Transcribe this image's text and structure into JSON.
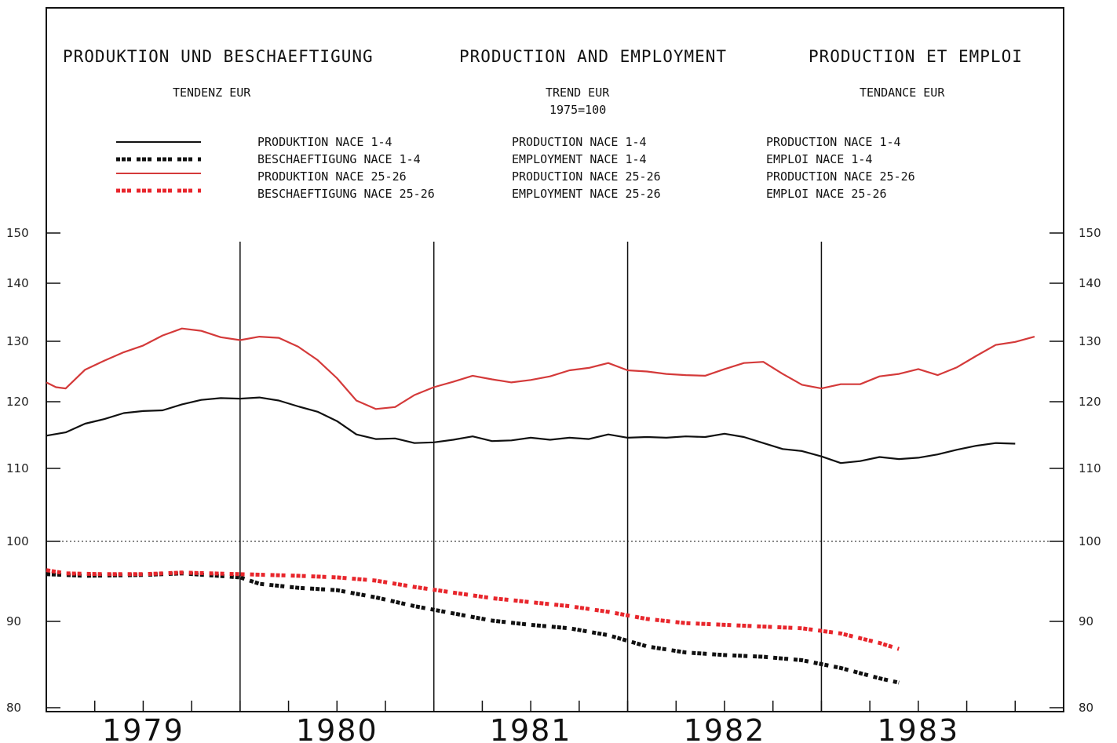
{
  "header": {
    "title_de": "PRODUKTION UND BESCHAEFTIGUNG",
    "title_en": "PRODUCTION AND EMPLOYMENT",
    "title_fr": "PRODUCTION ET EMPLOI",
    "subtitle_de": "TENDENZ EUR",
    "subtitle_en": "TREND EUR",
    "subtitle_en_base": "1975=100",
    "subtitle_fr": "TENDANCE EUR"
  },
  "legend": [
    {
      "de": "PRODUKTION NACE 1-4",
      "en": "PRODUCTION NACE 1-4",
      "fr": "PRODUCTION NACE 1-4",
      "color": "#111111",
      "style": "solid"
    },
    {
      "de": "BESCHAEFTIGUNG NACE 1-4",
      "en": "EMPLOYMENT NACE 1-4",
      "fr": "EMPLOI NACE 1-4",
      "color": "#111111",
      "style": "dotted"
    },
    {
      "de": "PRODUKTION NACE 25-26",
      "en": "PRODUCTION NACE 25-26",
      "fr": "PRODUCTION NACE 25-26",
      "color": "#d43a3a",
      "style": "solid"
    },
    {
      "de": "BESCHAEFTIGUNG NACE 25-26",
      "en": "EMPLOYMENT NACE 25-26",
      "fr": "EMPLOI NACE 25-26",
      "color": "#e8262c",
      "style": "dotted"
    }
  ],
  "chart_data": {
    "type": "line",
    "ylim": [
      80,
      150
    ],
    "y_ticks": [
      "80",
      "90",
      "100",
      "110",
      "120",
      "130",
      "140",
      "150"
    ],
    "x_range": [
      1978.5,
      1983.75
    ],
    "year_labels": [
      "1979",
      "1980",
      "1981",
      "1982",
      "1983"
    ],
    "year_dividers": [
      1979.5,
      1980.5,
      1981.5,
      1982.5
    ],
    "reference_line": 100,
    "grid": false,
    "legend_position": "top",
    "series": [
      {
        "name": "PRODUKTION NACE 1-4",
        "color": "#111111",
        "style": "solid",
        "points": [
          [
            1978.5,
            114.9
          ],
          [
            1978.6,
            115.4
          ],
          [
            1978.7,
            116.7
          ],
          [
            1978.8,
            117.4
          ],
          [
            1978.9,
            118.3
          ],
          [
            1979.0,
            118.6
          ],
          [
            1979.1,
            118.7
          ],
          [
            1979.2,
            119.6
          ],
          [
            1979.3,
            120.3
          ],
          [
            1979.4,
            120.6
          ],
          [
            1979.5,
            120.5
          ],
          [
            1979.6,
            120.7
          ],
          [
            1979.7,
            120.2
          ],
          [
            1979.8,
            119.3
          ],
          [
            1979.9,
            118.5
          ],
          [
            1980.0,
            117.1
          ],
          [
            1980.1,
            115.1
          ],
          [
            1980.2,
            114.4
          ],
          [
            1980.3,
            114.5
          ],
          [
            1980.4,
            113.8
          ],
          [
            1980.5,
            113.9
          ],
          [
            1980.6,
            114.3
          ],
          [
            1980.7,
            114.8
          ],
          [
            1980.8,
            114.1
          ],
          [
            1980.9,
            114.2
          ],
          [
            1981.0,
            114.6
          ],
          [
            1981.1,
            114.3
          ],
          [
            1981.2,
            114.6
          ],
          [
            1981.3,
            114.4
          ],
          [
            1981.4,
            115.1
          ],
          [
            1981.5,
            114.6
          ],
          [
            1981.6,
            114.7
          ],
          [
            1981.7,
            114.6
          ],
          [
            1981.8,
            114.8
          ],
          [
            1981.9,
            114.7
          ],
          [
            1982.0,
            115.2
          ],
          [
            1982.1,
            114.7
          ],
          [
            1982.2,
            113.8
          ],
          [
            1982.3,
            112.9
          ],
          [
            1982.4,
            112.6
          ],
          [
            1982.5,
            111.8
          ],
          [
            1982.6,
            110.8
          ],
          [
            1982.7,
            111.1
          ],
          [
            1982.8,
            111.7
          ],
          [
            1982.9,
            111.4
          ],
          [
            1983.0,
            111.6
          ],
          [
            1983.1,
            112.1
          ],
          [
            1983.2,
            112.8
          ],
          [
            1983.3,
            113.4
          ],
          [
            1983.4,
            113.8
          ],
          [
            1983.5,
            113.7
          ]
        ]
      },
      {
        "name": "BESCHAEFTIGUNG NACE 1-4",
        "color": "#111111",
        "style": "dotted",
        "points": [
          [
            1978.5,
            95.9
          ],
          [
            1978.7,
            95.7
          ],
          [
            1979.0,
            95.8
          ],
          [
            1979.2,
            96.0
          ],
          [
            1979.5,
            95.5
          ],
          [
            1979.6,
            94.7
          ],
          [
            1979.8,
            94.2
          ],
          [
            1980.0,
            93.9
          ],
          [
            1980.2,
            93.0
          ],
          [
            1980.4,
            91.9
          ],
          [
            1980.6,
            91.0
          ],
          [
            1980.8,
            90.1
          ],
          [
            1981.0,
            89.6
          ],
          [
            1981.2,
            89.2
          ],
          [
            1981.4,
            88.4
          ],
          [
            1981.6,
            87.1
          ],
          [
            1981.8,
            86.4
          ],
          [
            1982.0,
            86.1
          ],
          [
            1982.2,
            85.9
          ],
          [
            1982.4,
            85.5
          ],
          [
            1982.6,
            84.6
          ],
          [
            1982.8,
            83.4
          ],
          [
            1982.9,
            82.9
          ]
        ]
      },
      {
        "name": "PRODUKTION NACE 25-26",
        "color": "#d43a3a",
        "style": "solid",
        "points": [
          [
            1978.5,
            123.2
          ],
          [
            1978.55,
            122.4
          ],
          [
            1978.6,
            122.2
          ],
          [
            1978.7,
            125.3
          ],
          [
            1978.8,
            126.8
          ],
          [
            1978.9,
            128.2
          ],
          [
            1979.0,
            129.3
          ],
          [
            1979.1,
            131.0
          ],
          [
            1979.2,
            132.2
          ],
          [
            1979.3,
            131.8
          ],
          [
            1979.4,
            130.7
          ],
          [
            1979.5,
            130.2
          ],
          [
            1979.6,
            130.8
          ],
          [
            1979.7,
            130.6
          ],
          [
            1979.8,
            129.1
          ],
          [
            1979.9,
            126.9
          ],
          [
            1980.0,
            123.9
          ],
          [
            1980.1,
            120.2
          ],
          [
            1980.2,
            118.9
          ],
          [
            1980.3,
            119.2
          ],
          [
            1980.4,
            121.1
          ],
          [
            1980.5,
            122.4
          ],
          [
            1980.6,
            123.3
          ],
          [
            1980.7,
            124.3
          ],
          [
            1980.8,
            123.7
          ],
          [
            1980.9,
            123.2
          ],
          [
            1981.0,
            123.6
          ],
          [
            1981.1,
            124.2
          ],
          [
            1981.2,
            125.2
          ],
          [
            1981.3,
            125.6
          ],
          [
            1981.4,
            126.4
          ],
          [
            1981.5,
            125.2
          ],
          [
            1981.6,
            125.0
          ],
          [
            1981.7,
            124.6
          ],
          [
            1981.8,
            124.4
          ],
          [
            1981.9,
            124.3
          ],
          [
            1982.0,
            125.4
          ],
          [
            1982.1,
            126.4
          ],
          [
            1982.2,
            126.6
          ],
          [
            1982.3,
            124.6
          ],
          [
            1982.4,
            122.8
          ],
          [
            1982.5,
            122.2
          ],
          [
            1982.6,
            122.9
          ],
          [
            1982.7,
            122.9
          ],
          [
            1982.8,
            124.2
          ],
          [
            1982.9,
            124.6
          ],
          [
            1983.0,
            125.4
          ],
          [
            1983.1,
            124.4
          ],
          [
            1983.2,
            125.7
          ],
          [
            1983.3,
            127.6
          ],
          [
            1983.4,
            129.4
          ],
          [
            1983.5,
            129.9
          ],
          [
            1983.6,
            130.8
          ]
        ]
      },
      {
        "name": "BESCHAEFTIGUNG NACE 25-26",
        "color": "#e8262c",
        "style": "dotted",
        "points": [
          [
            1978.5,
            96.4
          ],
          [
            1978.6,
            96.0
          ],
          [
            1978.8,
            95.9
          ],
          [
            1979.0,
            95.9
          ],
          [
            1979.2,
            96.1
          ],
          [
            1979.5,
            95.9
          ],
          [
            1979.8,
            95.7
          ],
          [
            1980.0,
            95.5
          ],
          [
            1980.2,
            95.1
          ],
          [
            1980.4,
            94.3
          ],
          [
            1980.6,
            93.6
          ],
          [
            1980.8,
            92.9
          ],
          [
            1981.0,
            92.4
          ],
          [
            1981.2,
            91.9
          ],
          [
            1981.4,
            91.2
          ],
          [
            1981.6,
            90.3
          ],
          [
            1981.8,
            89.8
          ],
          [
            1982.0,
            89.6
          ],
          [
            1982.2,
            89.4
          ],
          [
            1982.4,
            89.2
          ],
          [
            1982.6,
            88.6
          ],
          [
            1982.8,
            87.5
          ],
          [
            1982.9,
            86.8
          ]
        ]
      }
    ]
  }
}
